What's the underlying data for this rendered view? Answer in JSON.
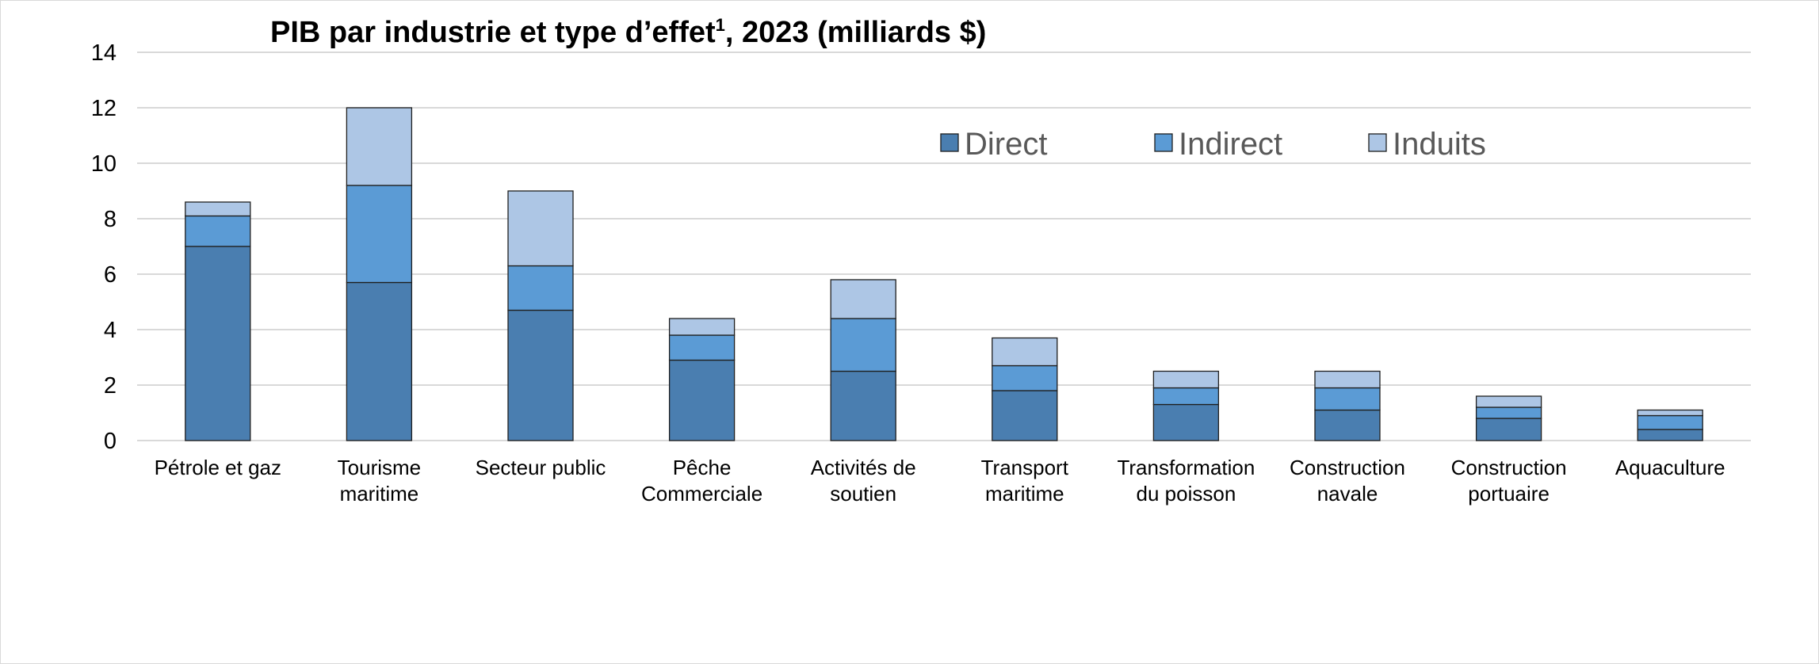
{
  "chart_data": {
    "type": "bar",
    "stacked": true,
    "title": "PIB par industrie et type d’effet",
    "title_superscript": "1",
    "title_suffix": ", 2023 (milliards $)",
    "xlabel": "",
    "ylabel": "",
    "ylim": [
      0,
      14
    ],
    "yticks": [
      "0",
      "2",
      "4",
      "6",
      "8",
      "10",
      "12",
      "14"
    ],
    "grid": true,
    "legend_position": "top-right, inside plot",
    "categories": [
      [
        "Pétrole et gaz"
      ],
      [
        "Tourisme",
        "maritime"
      ],
      [
        "Secteur public"
      ],
      [
        "Pêche",
        "Commerciale"
      ],
      [
        "Activités de",
        "soutien"
      ],
      [
        "Transport",
        "maritime"
      ],
      [
        "Transformation",
        "du poisson"
      ],
      [
        "Construction",
        "navale"
      ],
      [
        "Construction",
        "portuaire"
      ],
      [
        "Aquaculture"
      ]
    ],
    "series": [
      {
        "name": "Direct",
        "color": "#4a7eb0",
        "values": [
          7.0,
          5.7,
          4.7,
          2.9,
          2.5,
          1.8,
          1.3,
          1.1,
          0.8,
          0.4
        ]
      },
      {
        "name": "Indirect",
        "color": "#5b9bd5",
        "values": [
          1.1,
          3.5,
          1.6,
          0.9,
          1.9,
          0.9,
          0.6,
          0.8,
          0.4,
          0.5
        ]
      },
      {
        "name": "Induits",
        "color": "#adc6e5",
        "values": [
          0.5,
          2.8,
          2.7,
          0.6,
          1.4,
          1.0,
          0.6,
          0.6,
          0.4,
          0.2
        ]
      }
    ]
  }
}
